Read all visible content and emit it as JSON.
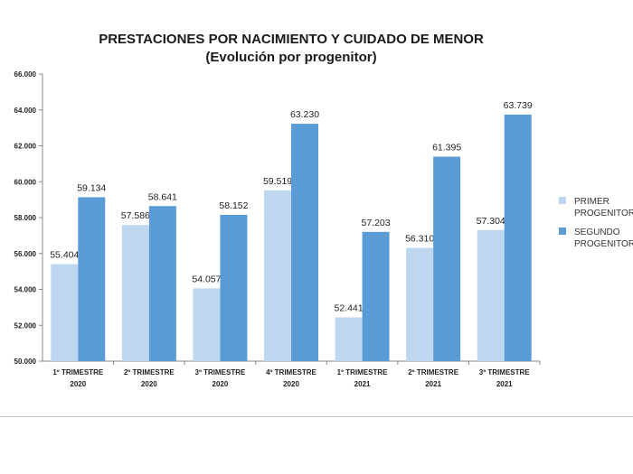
{
  "chart_data": {
    "type": "bar",
    "title": "PRESTACIONES POR NACIMIENTO Y CUIDADO DE MENOR",
    "subtitle": "(Evolución por progenitor)",
    "categories": [
      [
        "1º TRIMESTRE",
        "2020"
      ],
      [
        "2º TRIMESTRE",
        "2020"
      ],
      [
        "3º TRIMESTRE",
        "2020"
      ],
      [
        "4º TRIMESTRE",
        "2020"
      ],
      [
        "1º TRIMESTRE",
        "2021"
      ],
      [
        "2º TRIMESTRE",
        "2021"
      ],
      [
        "3º TRIMESTRE",
        "2021"
      ]
    ],
    "series": [
      {
        "name_lines": [
          "PRIMER",
          "PROGENITOR"
        ],
        "color": "#bdd7ee",
        "values": [
          55404,
          57586,
          54057,
          59519,
          52441,
          56310,
          57304
        ],
        "labels": [
          "55.404",
          "57.586",
          "54.057",
          "59.519",
          "52.441",
          "56.310",
          "57.304"
        ]
      },
      {
        "name_lines": [
          "SEGUNDO",
          "PROGENITOR"
        ],
        "color": "#5b9bd5",
        "values": [
          59134,
          58641,
          58152,
          63230,
          57203,
          61395,
          63739
        ],
        "labels": [
          "59.134",
          "58.641",
          "58.152",
          "63.230",
          "57.203",
          "61.395",
          "63.739"
        ]
      }
    ],
    "y_ticks": [
      "50.000",
      "52.000",
      "54.000",
      "56.000",
      "58.000",
      "60.000",
      "62.000",
      "64.000",
      "66.000"
    ],
    "ylim": [
      50000,
      66000
    ],
    "legend_position": "right",
    "grid": false
  }
}
